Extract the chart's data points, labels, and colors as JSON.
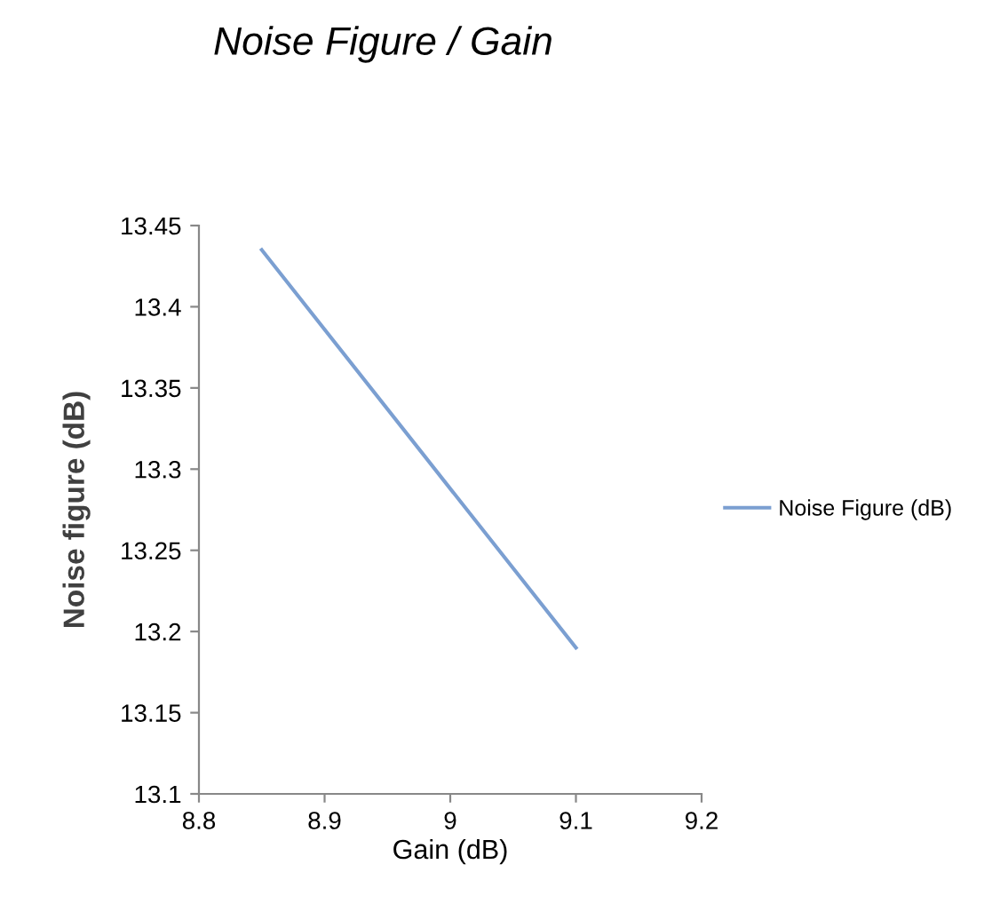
{
  "chart_data": {
    "type": "line",
    "title": "Noise Figure / Gain",
    "xlabel": "Gain (dB)",
    "ylabel": "Noise figure (dB)",
    "x": [
      8.85,
      9.1
    ],
    "series": [
      {
        "name": "Noise Figure (dB)",
        "color": "#7b9fd1",
        "values": [
          13.435,
          13.19
        ]
      }
    ],
    "xlim": [
      8.8,
      9.2
    ],
    "xticks": [
      8.8,
      8.9,
      9,
      9.1,
      9.2
    ],
    "ylim": [
      13.1,
      13.45
    ],
    "yticks": [
      13.1,
      13.15,
      13.2,
      13.25,
      13.3,
      13.35,
      13.4,
      13.45
    ],
    "grid": false,
    "legend": "right"
  }
}
